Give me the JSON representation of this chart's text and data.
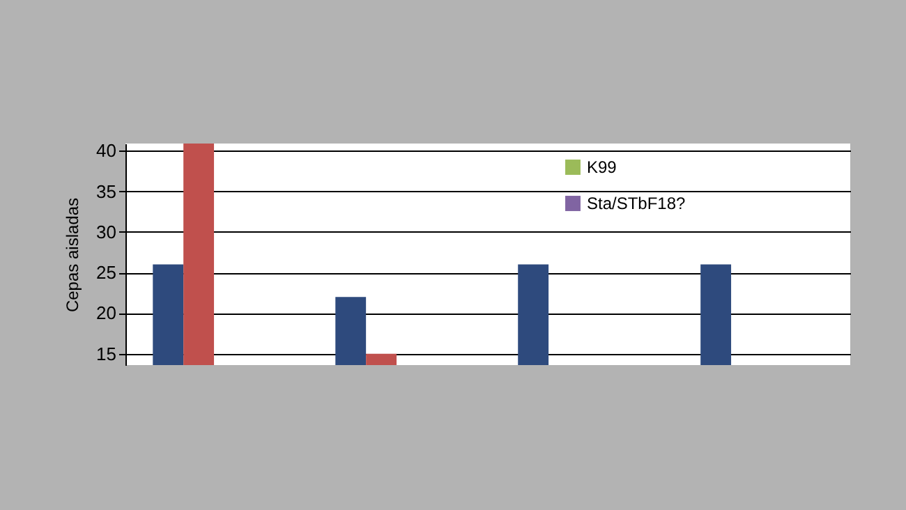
{
  "chart_data": {
    "type": "bar",
    "ylabel": "Cepas aisladas",
    "categories": [
      null,
      null,
      null,
      null
    ],
    "series": [
      {
        "color": "#2e4a7d",
        "values": [
          26,
          22,
          26,
          26
        ]
      },
      {
        "color": "#c0504d",
        "values": [
          40.9,
          15,
          null,
          null
        ]
      },
      {
        "name": "K99",
        "color": "#9bbb59",
        "values": [
          null,
          null,
          null,
          null
        ]
      },
      {
        "name": "Sta/STbF18?",
        "color": "#8064a2",
        "values": [
          null,
          null,
          null,
          null
        ]
      }
    ],
    "ylim": [
      13.6,
      40.9
    ],
    "yticks": [
      15,
      20,
      25,
      30,
      35,
      40
    ],
    "grid": "y",
    "legend": "top",
    "tick_labels": "y"
  }
}
